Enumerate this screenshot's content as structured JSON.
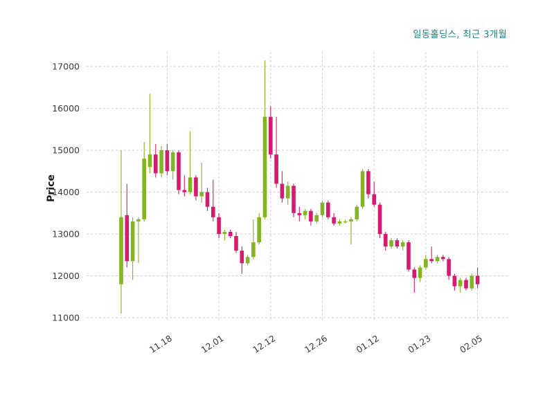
{
  "chart": {
    "title": "일동홀딩스, 최근 3개월",
    "ylabel": "Price"
  },
  "chart_data": {
    "type": "candlestick",
    "title": "일동홀딩스, 최근 3개월",
    "xlabel": "",
    "ylabel": "Price",
    "ylim": [
      10900,
      17350
    ],
    "grid": "dashed",
    "legend": "none",
    "y_ticks": [
      11000,
      12000,
      13000,
      14000,
      15000,
      16000,
      17000
    ],
    "x_ticks": [
      {
        "index": 8,
        "label": "11.18"
      },
      {
        "index": 17,
        "label": "12.01"
      },
      {
        "index": 26,
        "label": "12.12"
      },
      {
        "index": 35,
        "label": "12.26"
      },
      {
        "index": 44,
        "label": "01.12"
      },
      {
        "index": 53,
        "label": "01.23"
      },
      {
        "index": 62,
        "label": "02.05"
      }
    ],
    "colors": {
      "up": "#84b420",
      "down": "#d51b6e",
      "title": "#20867a",
      "grid": "#cfcfcf",
      "tick_text": "#3b3b3b"
    },
    "ohlc_order": [
      "open",
      "high",
      "low",
      "close"
    ],
    "candles": [
      [
        11800,
        15000,
        11100,
        13400
      ],
      [
        13450,
        14200,
        12200,
        12350
      ],
      [
        12350,
        13400,
        11900,
        13300
      ],
      [
        13300,
        13400,
        12300,
        13350
      ],
      [
        13350,
        15200,
        13300,
        14800
      ],
      [
        14600,
        16350,
        14450,
        14900
      ],
      [
        14900,
        15150,
        14350,
        14450
      ],
      [
        14450,
        15100,
        14350,
        15000
      ],
      [
        15000,
        15150,
        14400,
        14500
      ],
      [
        14500,
        15000,
        14300,
        14950
      ],
      [
        14950,
        15000,
        13950,
        14050
      ],
      [
        14050,
        14400,
        13900,
        14000
      ],
      [
        14000,
        15450,
        13950,
        14350
      ],
      [
        14350,
        14400,
        13800,
        13900
      ],
      [
        13900,
        14700,
        13750,
        14000
      ],
      [
        14000,
        14100,
        13550,
        13650
      ],
      [
        13650,
        14300,
        13300,
        13400
      ],
      [
        13400,
        13500,
        12900,
        13000
      ],
      [
        13000,
        13100,
        12850,
        13050
      ],
      [
        13050,
        13100,
        12900,
        12950
      ],
      [
        12950,
        13050,
        12550,
        12600
      ],
      [
        12600,
        12700,
        12050,
        12300
      ],
      [
        12300,
        12500,
        12250,
        12450
      ],
      [
        12450,
        13350,
        12400,
        12800
      ],
      [
        12800,
        13500,
        12750,
        13400
      ],
      [
        13400,
        17150,
        13350,
        15800
      ],
      [
        15800,
        16050,
        14800,
        14900
      ],
      [
        14900,
        15800,
        14100,
        14200
      ],
      [
        14200,
        14500,
        13750,
        13850
      ],
      [
        13850,
        14250,
        13700,
        14150
      ],
      [
        14150,
        14200,
        13400,
        13500
      ],
      [
        13500,
        13650,
        13300,
        13450
      ],
      [
        13450,
        13600,
        13350,
        13550
      ],
      [
        13550,
        13600,
        13200,
        13300
      ],
      [
        13300,
        13500,
        13250,
        13450
      ],
      [
        13450,
        13800,
        13400,
        13750
      ],
      [
        13750,
        13800,
        13350,
        13400
      ],
      [
        13400,
        13500,
        13200,
        13250
      ],
      [
        13250,
        13350,
        13200,
        13300
      ],
      [
        13300,
        13350,
        13250,
        13300
      ],
      [
        13300,
        13400,
        12750,
        13350
      ],
      [
        13350,
        13700,
        13300,
        13650
      ],
      [
        13650,
        14550,
        13600,
        14500
      ],
      [
        14500,
        14550,
        13850,
        13950
      ],
      [
        13950,
        14250,
        13650,
        13700
      ],
      [
        13700,
        13750,
        12900,
        13000
      ],
      [
        13000,
        13050,
        12600,
        12700
      ],
      [
        12700,
        12900,
        12650,
        12850
      ],
      [
        12850,
        12900,
        12650,
        12700
      ],
      [
        12700,
        12850,
        12600,
        12800
      ],
      [
        12800,
        12850,
        12100,
        12150
      ],
      [
        12150,
        12200,
        11600,
        11950
      ],
      [
        11950,
        12250,
        11850,
        12200
      ],
      [
        12200,
        12500,
        12150,
        12400
      ],
      [
        12400,
        12700,
        12300,
        12350
      ],
      [
        12350,
        12500,
        12300,
        12450
      ],
      [
        12450,
        12500,
        12350,
        12400
      ],
      [
        12400,
        12450,
        11900,
        12000
      ],
      [
        12000,
        12050,
        11650,
        11750
      ],
      [
        11750,
        11950,
        11600,
        11900
      ],
      [
        11900,
        11950,
        11650,
        11700
      ],
      [
        11700,
        12050,
        11650,
        12000
      ],
      [
        12000,
        12200,
        11700,
        11800
      ]
    ]
  }
}
